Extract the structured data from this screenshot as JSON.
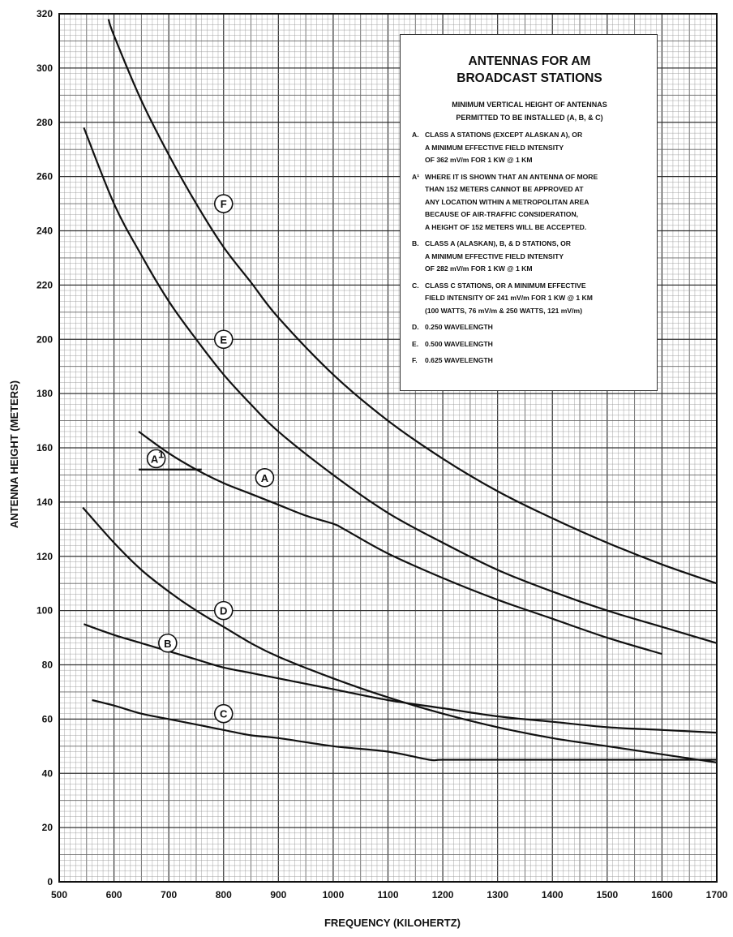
{
  "chart_data": {
    "type": "line",
    "xlabel": "FREQUENCY (KILOHERTZ)",
    "ylabel": "ANTENNA HEIGHT (METERS)",
    "xlim": [
      500,
      1700
    ],
    "ylim": [
      0,
      320
    ],
    "xticks": [
      500,
      600,
      700,
      800,
      900,
      1000,
      1100,
      1200,
      1300,
      1400,
      1500,
      1600,
      1700
    ],
    "yticks": [
      0,
      20,
      40,
      60,
      80,
      100,
      120,
      140,
      160,
      180,
      200,
      220,
      240,
      260,
      280,
      300,
      320
    ],
    "grid": true,
    "series": [
      {
        "name": "F",
        "label_at": [
          800,
          250
        ],
        "x": [
          590,
          600,
          650,
          700,
          750,
          800,
          850,
          900,
          1000,
          1100,
          1200,
          1300,
          1400,
          1500,
          1600,
          1700
        ],
        "y": [
          318,
          312,
          288,
          268,
          250,
          234,
          221,
          208,
          187,
          170,
          156,
          144,
          134,
          125,
          117,
          110
        ]
      },
      {
        "name": "E",
        "label_at": [
          800,
          200
        ],
        "x": [
          545,
          600,
          650,
          700,
          750,
          800,
          850,
          900,
          1000,
          1100,
          1200,
          1300,
          1400,
          1500,
          1600,
          1700
        ],
        "y": [
          278,
          250,
          231,
          214,
          200,
          187,
          176,
          166,
          150,
          136,
          125,
          115,
          107,
          100,
          94,
          88
        ]
      },
      {
        "name": "A",
        "label_at": [
          875,
          149
        ],
        "x": [
          645,
          700,
          750,
          800,
          850,
          900,
          950,
          1000,
          1020,
          1100,
          1200,
          1300,
          1400,
          1500,
          1600
        ],
        "y": [
          166,
          158,
          152,
          147,
          143,
          139,
          135,
          132,
          130,
          121,
          112,
          104,
          97,
          90,
          84
        ]
      },
      {
        "name": "A1",
        "label_at": [
          677,
          156
        ],
        "x": [
          645,
          760
        ],
        "y": [
          152,
          152
        ]
      },
      {
        "name": "D",
        "label_at": [
          800,
          100
        ],
        "x": [
          543,
          600,
          650,
          700,
          750,
          800,
          850,
          900,
          1000,
          1100,
          1200,
          1300,
          1400,
          1500,
          1600,
          1700
        ],
        "y": [
          138,
          125,
          115,
          107,
          100,
          94,
          88,
          83,
          75,
          68,
          62,
          57,
          53,
          50,
          47,
          44
        ]
      },
      {
        "name": "B",
        "label_at": [
          698,
          88
        ],
        "x": [
          545,
          600,
          650,
          700,
          750,
          800,
          850,
          900,
          1000,
          1100,
          1200,
          1300,
          1400,
          1500,
          1600,
          1700
        ],
        "y": [
          95,
          91,
          88,
          85,
          82,
          79,
          77,
          75,
          71,
          67,
          64,
          61,
          59,
          57,
          56,
          55
        ]
      },
      {
        "name": "C",
        "label_at": [
          800,
          62
        ],
        "x": [
          560,
          600,
          650,
          700,
          750,
          800,
          850,
          900,
          1000,
          1100,
          1175,
          1200,
          1300,
          1400,
          1500,
          1600,
          1700
        ],
        "y": [
          67,
          65,
          62,
          60,
          58,
          56,
          54,
          53,
          50,
          48,
          45,
          45,
          45,
          45,
          45,
          45,
          45
        ]
      }
    ]
  },
  "legend": {
    "title": "ANTENNAS FOR AM\nBROADCAST STATIONS",
    "subtitle": "MINIMUM VERTICAL HEIGHT OF ANTENNAS\nPERMITTED TO BE INSTALLED (A, B, & C)",
    "entries": [
      {
        "key": "A.",
        "text": "CLASS A STATIONS (EXCEPT ALASKAN A), OR\nA MINIMUM EFFECTIVE FIELD INTENSITY\nOF 362 mV/m FOR 1 KW @ 1 KM"
      },
      {
        "key": "A¹",
        "text": "WHERE IT IS SHOWN THAT AN ANTENNA OF MORE\nTHAN 152 METERS CANNOT BE APPROVED AT\nANY LOCATION WITHIN A METROPOLITAN AREA\nBECAUSE OF AIR-TRAFFIC CONSIDERATION,\nA HEIGHT OF 152 METERS WILL BE ACCEPTED."
      },
      {
        "key": "B.",
        "text": "CLASS A (ALASKAN), B, & D STATIONS, OR\nA MINIMUM EFFECTIVE FIELD INTENSITY\nOF 282 mV/m FOR 1 KW @ 1 KM"
      },
      {
        "key": "C.",
        "text": "CLASS C STATIONS, OR A MINIMUM EFFECTIVE\nFIELD INTENSITY OF 241 mV/m FOR 1 KW @ 1 KM\n(100 WATTS, 76 mV/m & 250 WATTS, 121 mV/m)"
      },
      {
        "key": "D.",
        "text": "0.250 WAVELENGTH"
      },
      {
        "key": "E.",
        "text": "0.500 WAVELENGTH"
      },
      {
        "key": "F.",
        "text": "0.625 WAVELENGTH"
      }
    ]
  }
}
